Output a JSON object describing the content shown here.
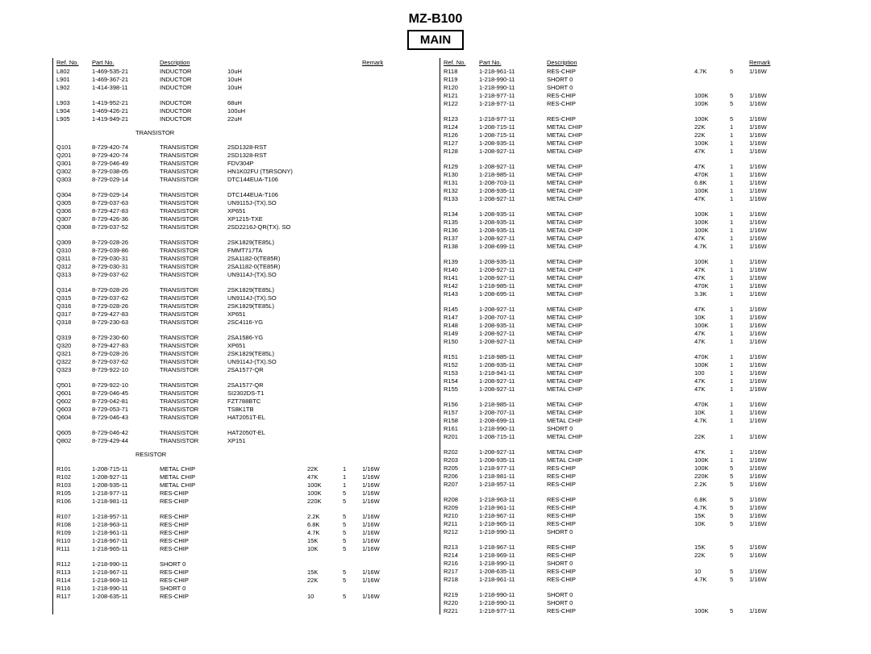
{
  "header": {
    "model": "MZ-B100",
    "main": "MAIN"
  },
  "colHeaders": {
    "ref": "Ref. No.",
    "part": "Part No.",
    "desc": "Description",
    "remark": "Remark"
  },
  "sections": {
    "transistor": "TRANSISTOR",
    "resistor": "RESISTOR"
  },
  "left": [
    [
      "L802",
      "1-469-535-21",
      "INDUCTOR",
      "10uH",
      "",
      "",
      ""
    ],
    [
      "L901",
      "1-469-367-21",
      "INDUCTOR",
      "10uH",
      "",
      "",
      ""
    ],
    [
      "L902",
      "1-414-398-11",
      "INDUCTOR",
      "10uH",
      "",
      "",
      ""
    ],
    [
      "",
      "",
      "",
      "",
      "",
      "",
      ""
    ],
    [
      "L903",
      "1-419-952-21",
      "INDUCTOR",
      "68uH",
      "",
      "",
      ""
    ],
    [
      "L904",
      "1-469-426-21",
      "INDUCTOR",
      "100uH",
      "",
      "",
      ""
    ],
    [
      "L905",
      "1-419-949-21",
      "INDUCTOR",
      "22uH",
      "",
      "",
      ""
    ],
    [
      "SECTION",
      "transistor"
    ],
    [
      "Q101",
      "8-729-420-74",
      "TRANSISTOR",
      "2SD1328-RST",
      "",
      "",
      ""
    ],
    [
      "Q201",
      "8-729-420-74",
      "TRANSISTOR",
      "2SD1328-RST",
      "",
      "",
      ""
    ],
    [
      "Q301",
      "8-729-046-49",
      "TRANSISTOR",
      "FDV304P",
      "",
      "",
      ""
    ],
    [
      "Q302",
      "8-729-038-05",
      "TRANSISTOR",
      "HN1K02FU (T5RSONY)",
      "",
      "",
      ""
    ],
    [
      "Q303",
      "8-729-029-14",
      "TRANSISTOR",
      "DTC144EUA-T106",
      "",
      "",
      ""
    ],
    [
      "",
      "",
      "",
      "",
      "",
      "",
      ""
    ],
    [
      "Q304",
      "8-729-029-14",
      "TRANSISTOR",
      "DTC144EUA-T106",
      "",
      "",
      ""
    ],
    [
      "Q305",
      "8-729-037-63",
      "TRANSISTOR",
      "UN9115J-(TX).SO",
      "",
      "",
      ""
    ],
    [
      "Q306",
      "8-729-427-83",
      "TRANSISTOR",
      "XP651",
      "",
      "",
      ""
    ],
    [
      "Q307",
      "8-729-426-36",
      "TRANSISTOR",
      "XP1215-TXE",
      "",
      "",
      ""
    ],
    [
      "Q308",
      "8-729-037-52",
      "TRANSISTOR",
      "2SD2216J-QR(TX). SO",
      "",
      "",
      ""
    ],
    [
      "",
      "",
      "",
      "",
      "",
      "",
      ""
    ],
    [
      "Q309",
      "8-729-028-26",
      "TRANSISTOR",
      "2SK1829(TE85L)",
      "",
      "",
      ""
    ],
    [
      "Q310",
      "8-729-039-86",
      "TRANSISTOR",
      "FMMT717TA",
      "",
      "",
      ""
    ],
    [
      "Q311",
      "8-729-030-31",
      "TRANSISTOR",
      "2SA1182-0(TE85R)",
      "",
      "",
      ""
    ],
    [
      "Q312",
      "8-729-030-31",
      "TRANSISTOR",
      "2SA1182-0(TE85R)",
      "",
      "",
      ""
    ],
    [
      "Q313",
      "8-729-037-62",
      "TRANSISTOR",
      "UN9114J-(TX).SO",
      "",
      "",
      ""
    ],
    [
      "",
      "",
      "",
      "",
      "",
      "",
      ""
    ],
    [
      "Q314",
      "8-729-028-26",
      "TRANSISTOR",
      "2SK1829(TE85L)",
      "",
      "",
      ""
    ],
    [
      "Q315",
      "8-729-037-62",
      "TRANSISTOR",
      "UN9114J-(TX).SO",
      "",
      "",
      ""
    ],
    [
      "Q316",
      "8-729-028-26",
      "TRANSISTOR",
      "2SK1829(TE85L)",
      "",
      "",
      ""
    ],
    [
      "Q317",
      "8-729-427-83",
      "TRANSISTOR",
      "XP651",
      "",
      "",
      ""
    ],
    [
      "Q318",
      "8-729-230-63",
      "TRANSISTOR",
      "2SC4116-YG",
      "",
      "",
      ""
    ],
    [
      "",
      "",
      "",
      "",
      "",
      "",
      ""
    ],
    [
      "Q319",
      "8-729-230-60",
      "TRANSISTOR",
      "2SA1586-YG",
      "",
      "",
      ""
    ],
    [
      "Q320",
      "8-729-427-83",
      "TRANSISTOR",
      "XP651",
      "",
      "",
      ""
    ],
    [
      "Q321",
      "8-729-028-26",
      "TRANSISTOR",
      "2SK1829(TE85L)",
      "",
      "",
      ""
    ],
    [
      "Q322",
      "8-729-037-62",
      "TRANSISTOR",
      "UN9114J-(TX).SO",
      "",
      "",
      ""
    ],
    [
      "Q323",
      "8-729-922-10",
      "TRANSISTOR",
      "2SA1577-QR",
      "",
      "",
      ""
    ],
    [
      "",
      "",
      "",
      "",
      "",
      "",
      ""
    ],
    [
      "Q501",
      "8-729-922-10",
      "TRANSISTOR",
      "2SA1577-QR",
      "",
      "",
      ""
    ],
    [
      "Q601",
      "8-729-046-45",
      "TRANSISTOR",
      "SI2302DS-T1",
      "",
      "",
      ""
    ],
    [
      "Q602",
      "8-729-042-81",
      "TRANSISTOR",
      "FZT788BTC",
      "",
      "",
      ""
    ],
    [
      "Q603",
      "8-729-053-71",
      "TRANSISTOR",
      "TS8K1TB",
      "",
      "",
      ""
    ],
    [
      "Q604",
      "8-729-046-43",
      "TRANSISTOR",
      "HAT2051T-EL",
      "",
      "",
      ""
    ],
    [
      "",
      "",
      "",
      "",
      "",
      "",
      ""
    ],
    [
      "Q605",
      "8-729-046-42",
      "TRANSISTOR",
      "HAT2050T-EL",
      "",
      "",
      ""
    ],
    [
      "Q802",
      "8-729-429-44",
      "TRANSISTOR",
      "XP151",
      "",
      "",
      ""
    ],
    [
      "SECTION",
      "resistor"
    ],
    [
      "R101",
      "1-208-715-11",
      "METAL CHIP",
      "",
      "22K",
      "1",
      "1/16W"
    ],
    [
      "R102",
      "1-208-927-11",
      "METAL CHIP",
      "",
      "47K",
      "1",
      "1/16W"
    ],
    [
      "R103",
      "1-208-935-11",
      "METAL CHIP",
      "",
      "100K",
      "1",
      "1/16W"
    ],
    [
      "R105",
      "1-218-977-11",
      "RES-CHIP",
      "",
      "100K",
      "5",
      "1/16W"
    ],
    [
      "R106",
      "1-218-981-11",
      "RES-CHIP",
      "",
      "220K",
      "5",
      "1/16W"
    ],
    [
      "",
      "",
      "",
      "",
      "",
      "",
      ""
    ],
    [
      "R107",
      "1-218-957-11",
      "RES-CHIP",
      "",
      "2.2K",
      "5",
      "1/16W"
    ],
    [
      "R108",
      "1-218-963-11",
      "RES-CHIP",
      "",
      "6.8K",
      "5",
      "1/16W"
    ],
    [
      "R109",
      "1-218-961-11",
      "RES-CHIP",
      "",
      "4.7K",
      "5",
      "1/16W"
    ],
    [
      "R110",
      "1-218-967-11",
      "RES-CHIP",
      "",
      "15K",
      "5",
      "1/16W"
    ],
    [
      "R111",
      "1-218-965-11",
      "RES-CHIP",
      "",
      "10K",
      "5",
      "1/16W"
    ],
    [
      "",
      "",
      "",
      "",
      "",
      "",
      ""
    ],
    [
      "R112",
      "1-218-990-11",
      "SHORT 0",
      "",
      "",
      "",
      ""
    ],
    [
      "R113",
      "1-218-967-11",
      "RES-CHIP",
      "",
      "15K",
      "5",
      "1/16W"
    ],
    [
      "R114",
      "1-218-969-11",
      "RES-CHIP",
      "",
      "22K",
      "5",
      "1/16W"
    ],
    [
      "R116",
      "1-218-990-11",
      "SHORT 0",
      "",
      "",
      "",
      ""
    ],
    [
      "R117",
      "1-208-635-11",
      "RES-CHIP",
      "",
      "10",
      "5",
      "1/16W"
    ]
  ],
  "right": [
    [
      "R118",
      "1-218-961-11",
      "RES-CHIP",
      "",
      "4.7K",
      "5",
      "1/16W"
    ],
    [
      "R119",
      "1-218-990-11",
      "SHORT 0",
      "",
      "",
      "",
      ""
    ],
    [
      "R120",
      "1-218-990-11",
      "SHORT 0",
      "",
      "",
      "",
      ""
    ],
    [
      "R121",
      "1-218-977-11",
      "RES-CHIP",
      "",
      "100K",
      "5",
      "1/16W"
    ],
    [
      "R122",
      "1-218-977-11",
      "RES-CHIP",
      "",
      "100K",
      "5",
      "1/16W"
    ],
    [
      "",
      "",
      "",
      "",
      "",
      "",
      ""
    ],
    [
      "R123",
      "1-218-977-11",
      "RES-CHIP",
      "",
      "100K",
      "5",
      "1/16W"
    ],
    [
      "R124",
      "1-208-715-11",
      "METAL CHIP",
      "",
      "22K",
      "1",
      "1/16W"
    ],
    [
      "R126",
      "1-208-715-11",
      "METAL CHIP",
      "",
      "22K",
      "1",
      "1/16W"
    ],
    [
      "R127",
      "1-208-935-11",
      "METAL CHIP",
      "",
      "100K",
      "1",
      "1/16W"
    ],
    [
      "R128",
      "1-208-927-11",
      "METAL CHIP",
      "",
      "47K",
      "1",
      "1/16W"
    ],
    [
      "",
      "",
      "",
      "",
      "",
      "",
      ""
    ],
    [
      "R129",
      "1-208-927-11",
      "METAL CHIP",
      "",
      "47K",
      "1",
      "1/16W"
    ],
    [
      "R130",
      "1-218-985-11",
      "METAL CHIP",
      "",
      "470K",
      "1",
      "1/16W"
    ],
    [
      "R131",
      "1-208-703-11",
      "METAL CHIP",
      "",
      "6.8K",
      "1",
      "1/16W"
    ],
    [
      "R132",
      "1-208-935-11",
      "METAL CHIP",
      "",
      "100K",
      "1",
      "1/16W"
    ],
    [
      "R133",
      "1-208-927-11",
      "METAL CHIP",
      "",
      "47K",
      "1",
      "1/16W"
    ],
    [
      "",
      "",
      "",
      "",
      "",
      "",
      ""
    ],
    [
      "R134",
      "1-208-935-11",
      "METAL CHIP",
      "",
      "100K",
      "1",
      "1/16W"
    ],
    [
      "R135",
      "1-208-935-11",
      "METAL CHIP",
      "",
      "100K",
      "1",
      "1/16W"
    ],
    [
      "R136",
      "1-208-935-11",
      "METAL CHIP",
      "",
      "100K",
      "1",
      "1/16W"
    ],
    [
      "R137",
      "1-208-927-11",
      "METAL CHIP",
      "",
      "47K",
      "1",
      "1/16W"
    ],
    [
      "R138",
      "1-208-699-11",
      "METAL CHIP",
      "",
      "4.7K",
      "1",
      "1/16W"
    ],
    [
      "",
      "",
      "",
      "",
      "",
      "",
      ""
    ],
    [
      "R139",
      "1-208-935-11",
      "METAL CHIP",
      "",
      "100K",
      "1",
      "1/16W"
    ],
    [
      "R140",
      "1-208-927-11",
      "METAL CHIP",
      "",
      "47K",
      "1",
      "1/16W"
    ],
    [
      "R141",
      "1-208-927-11",
      "METAL CHIP",
      "",
      "47K",
      "1",
      "1/16W"
    ],
    [
      "R142",
      "1-218-985-11",
      "METAL CHIP",
      "",
      "470K",
      "1",
      "1/16W"
    ],
    [
      "R143",
      "1-208-695-11",
      "METAL CHIP",
      "",
      "3.3K",
      "1",
      "1/16W"
    ],
    [
      "",
      "",
      "",
      "",
      "",
      "",
      ""
    ],
    [
      "R145",
      "1-208-927-11",
      "METAL CHIP",
      "",
      "47K",
      "1",
      "1/16W"
    ],
    [
      "R147",
      "1-208-707-11",
      "METAL CHIP",
      "",
      "10K",
      "1",
      "1/16W"
    ],
    [
      "R148",
      "1-208-935-11",
      "METAL CHIP",
      "",
      "100K",
      "1",
      "1/16W"
    ],
    [
      "R149",
      "1-208-927-11",
      "METAL CHIP",
      "",
      "47K",
      "1",
      "1/16W"
    ],
    [
      "R150",
      "1-208-927-11",
      "METAL CHIP",
      "",
      "47K",
      "1",
      "1/16W"
    ],
    [
      "",
      "",
      "",
      "",
      "",
      "",
      ""
    ],
    [
      "R151",
      "1-218-985-11",
      "METAL CHIP",
      "",
      "470K",
      "1",
      "1/16W"
    ],
    [
      "R152",
      "1-208-935-11",
      "METAL CHIP",
      "",
      "100K",
      "1",
      "1/16W"
    ],
    [
      "R153",
      "1-218-941-11",
      "METAL CHIP",
      "",
      "100",
      "1",
      "1/16W"
    ],
    [
      "R154",
      "1-208-927-11",
      "METAL CHIP",
      "",
      "47K",
      "1",
      "1/16W"
    ],
    [
      "R155",
      "1-208-927-11",
      "METAL CHIP",
      "",
      "47K",
      "1",
      "1/16W"
    ],
    [
      "",
      "",
      "",
      "",
      "",
      "",
      ""
    ],
    [
      "R156",
      "1-218-985-11",
      "METAL CHIP",
      "",
      "470K",
      "1",
      "1/16W"
    ],
    [
      "R157",
      "1-208-707-11",
      "METAL CHIP",
      "",
      "10K",
      "1",
      "1/16W"
    ],
    [
      "R158",
      "1-208-699-11",
      "METAL CHIP",
      "",
      "4.7K",
      "1",
      "1/16W"
    ],
    [
      "R161",
      "1-218-990-11",
      "SHORT 0",
      "",
      "",
      "",
      ""
    ],
    [
      "R201",
      "1-208-715-11",
      "METAL CHIP",
      "",
      "22K",
      "1",
      "1/16W"
    ],
    [
      "",
      "",
      "",
      "",
      "",
      "",
      ""
    ],
    [
      "R202",
      "1-208-927-11",
      "METAL CHIP",
      "",
      "47K",
      "1",
      "1/16W"
    ],
    [
      "R203",
      "1-208-935-11",
      "METAL CHIP",
      "",
      "100K",
      "1",
      "1/16W"
    ],
    [
      "R205",
      "1-218-977-11",
      "RES-CHIP",
      "",
      "100K",
      "5",
      "1/16W"
    ],
    [
      "R206",
      "1-218-981-11",
      "RES-CHIP",
      "",
      "220K",
      "5",
      "1/16W"
    ],
    [
      "R207",
      "1-218-957-11",
      "RES-CHIP",
      "",
      "2.2K",
      "5",
      "1/16W"
    ],
    [
      "",
      "",
      "",
      "",
      "",
      "",
      ""
    ],
    [
      "R208",
      "1-218-963-11",
      "RES-CHIP",
      "",
      "6.8K",
      "5",
      "1/16W"
    ],
    [
      "R209",
      "1-218-961-11",
      "RES-CHIP",
      "",
      "4.7K",
      "5",
      "1/16W"
    ],
    [
      "R210",
      "1-218-967-11",
      "RES-CHIP",
      "",
      "15K",
      "5",
      "1/16W"
    ],
    [
      "R211",
      "1-218-965-11",
      "RES-CHIP",
      "",
      "10K",
      "5",
      "1/16W"
    ],
    [
      "R212",
      "1-218-990-11",
      "SHORT 0",
      "",
      "",
      "",
      ""
    ],
    [
      "",
      "",
      "",
      "",
      "",
      "",
      ""
    ],
    [
      "R213",
      "1-218-967-11",
      "RES-CHIP",
      "",
      "15K",
      "5",
      "1/16W"
    ],
    [
      "R214",
      "1-218-969-11",
      "RES-CHIP",
      "",
      "22K",
      "5",
      "1/16W"
    ],
    [
      "R216",
      "1-218-990-11",
      "SHORT 0",
      "",
      "",
      "",
      ""
    ],
    [
      "R217",
      "1-208-635-11",
      "RES-CHIP",
      "",
      "10",
      "5",
      "1/16W"
    ],
    [
      "R218",
      "1-218-961-11",
      "RES-CHIP",
      "",
      "4.7K",
      "5",
      "1/16W"
    ],
    [
      "",
      "",
      "",
      "",
      "",
      "",
      ""
    ],
    [
      "R219",
      "1-218-990-11",
      "SHORT 0",
      "",
      "",
      "",
      ""
    ],
    [
      "R220",
      "1-218-990-11",
      "SHORT 0",
      "",
      "",
      "",
      ""
    ],
    [
      "R221",
      "1-218-977-11",
      "RES-CHIP",
      "",
      "100K",
      "5",
      "1/16W"
    ]
  ]
}
